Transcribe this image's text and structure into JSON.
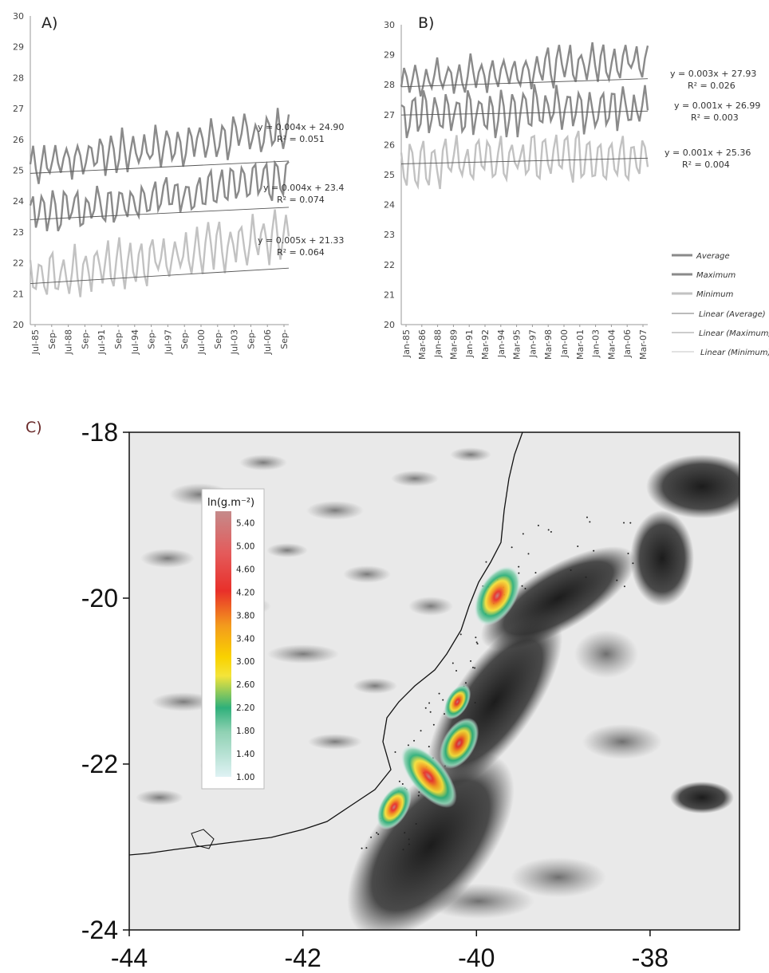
{
  "chart_data": [
    {
      "panel_label": "A)",
      "type": "line",
      "ylim": [
        20,
        30
      ],
      "yticks": [
        "20",
        "21",
        "22",
        "23",
        "24",
        "25",
        "26",
        "27",
        "28",
        "29",
        "30"
      ],
      "xtick_labels": [
        "Jul-85",
        "Sep-",
        "Jul-88",
        "Sep-",
        "Jul-91",
        "Sep-",
        "Jul-94",
        "Sep-",
        "Jul-97",
        "Sep-",
        "Jul-00",
        "Sep-",
        "Jul-03",
        "Sep-",
        "Jul-06",
        "Sep-"
      ],
      "x_start": 1985.5,
      "x_end": 2008.7,
      "series": [
        {
          "name": "Maximum",
          "level": 25.2,
          "amplitude": 0.55,
          "trend": 0.004,
          "color": "#8a8a8a"
        },
        {
          "name": "Average",
          "level": 23.6,
          "amplitude": 0.55,
          "trend": 0.004,
          "color": "#8a8a8a"
        },
        {
          "name": "Minimum",
          "level": 21.5,
          "amplitude": 0.65,
          "trend": 0.005,
          "color": "#c2c2c2"
        }
      ],
      "trendlines": [
        {
          "start": 24.9,
          "end": 25.3
        },
        {
          "start": 23.4,
          "end": 23.8
        },
        {
          "start": 21.33,
          "end": 21.83
        }
      ],
      "annotations": [
        {
          "eq": "y = 0.004x + 24.90",
          "r2": "R² = 0.051"
        },
        {
          "eq": "y = 0.004x + 23.4",
          "r2": "R² = 0.074"
        },
        {
          "eq": "y = 0.005x + 21.33",
          "r2": "R² = 0.064"
        }
      ]
    },
    {
      "panel_label": "B)",
      "type": "line",
      "ylim": [
        20,
        30
      ],
      "yticks": [
        "20",
        "21",
        "22",
        "23",
        "24",
        "25",
        "26",
        "27",
        "28",
        "29",
        "30"
      ],
      "xtick_labels": [
        "Jan-85",
        "Mar-86",
        "Jan-88",
        "Mar-89",
        "Jan-91",
        "Mar-92",
        "Jan-94",
        "Mar-95",
        "Jan-97",
        "Mar-98",
        "Jan-00",
        "Mar-01",
        "Jan-03",
        "Mar-04",
        "Jan-06",
        "Mar-07"
      ],
      "x_start": 1985.0,
      "x_end": 2007.3,
      "series": [
        {
          "name": "Maximum",
          "level": 28.1,
          "amplitude": 0.5,
          "trend": 0.003,
          "color": "#8a8a8a"
        },
        {
          "name": "Average",
          "level": 27.0,
          "amplitude": 0.65,
          "trend": 0.001,
          "color": "#8a8a8a"
        },
        {
          "name": "Minimum",
          "level": 25.4,
          "amplitude": 0.7,
          "trend": 0.001,
          "color": "#c2c2c2"
        }
      ],
      "trendlines": [
        {
          "start": 27.93,
          "end": 28.2
        },
        {
          "start": 26.99,
          "end": 27.12
        },
        {
          "start": 25.36,
          "end": 25.55
        }
      ],
      "annotations": [
        {
          "eq": "y = 0.003x + 27.93",
          "r2": "R² = 0.026"
        },
        {
          "eq": "y = 0.001x + 26.99",
          "r2": "R² = 0.003"
        },
        {
          "eq": "y = 0.001x + 25.36",
          "r2": "R² = 0.004"
        }
      ],
      "legend": [
        {
          "label": "Average",
          "kind": "thick",
          "color": "#8a8a8a"
        },
        {
          "label": "Maximum",
          "kind": "thick",
          "color": "#8a8a8a"
        },
        {
          "label": "Minimum",
          "kind": "thick",
          "color": "#c2c2c2"
        },
        {
          "label": "Linear (Average)",
          "kind": "thin",
          "color": "#777777"
        },
        {
          "label": "Linear (Maximum)",
          "kind": "thin",
          "color": "#9a9a9a"
        },
        {
          "label": "Linear (Minimum)",
          "kind": "thin",
          "color": "#c4c4c4"
        }
      ]
    },
    {
      "panel_label": "C)",
      "type": "heatmap",
      "xlim": [
        -44,
        -37
      ],
      "ylim": [
        -24,
        -18
      ],
      "xticks": [
        "-44",
        "-42",
        "-40",
        "-38"
      ],
      "yticks": [
        "-18",
        "-20",
        "-22",
        "-24"
      ],
      "colorbar": {
        "title": "ln(g.m⁻²)",
        "range": [
          1.0,
          5.6
        ],
        "ticks": [
          "5.40",
          "5.00",
          "4.60",
          "4.20",
          "3.80",
          "3.40",
          "3.00",
          "2.60",
          "2.20",
          "1.80",
          "1.40",
          "1.00"
        ],
        "colors": [
          "#dff2f4",
          "#8fd1b3",
          "#2fb07a",
          "#f4e43a",
          "#f9d200",
          "#f39a1d",
          "#e8302a",
          "#e45a5a",
          "#c58a8a"
        ]
      },
      "hotspots": [
        {
          "lon": -39.76,
          "lat": -19.97,
          "value": 5.3
        },
        {
          "lon": -40.22,
          "lat": -21.25,
          "value": 3.6
        },
        {
          "lon": -40.2,
          "lat": -21.75,
          "value": 4.7
        },
        {
          "lon": -40.55,
          "lat": -22.15,
          "value": 5.4
        },
        {
          "lon": -40.95,
          "lat": -22.52,
          "value": 4.3
        }
      ]
    }
  ]
}
